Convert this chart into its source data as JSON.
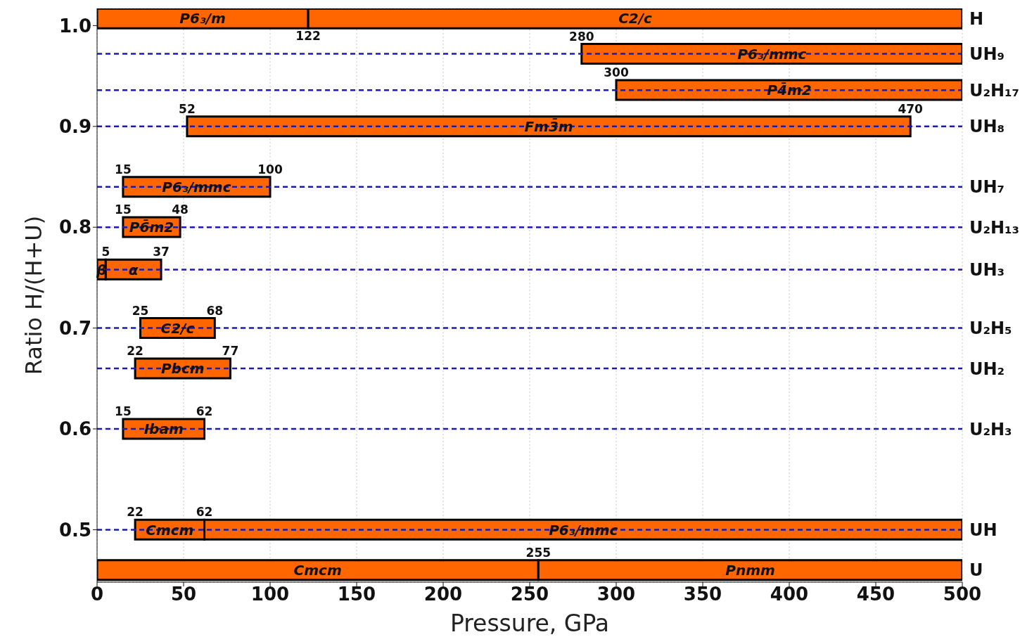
{
  "chart_data": {
    "type": "bar",
    "orientation": "horizontal",
    "xlabel": "Pressure, GPa",
    "ylabel": "Ratio H/(H+U)",
    "x": [
      1.007,
      0.972,
      0.936,
      0.9,
      0.84,
      0.8,
      0.758,
      0.7,
      0.66,
      0.6,
      0.5,
      0.46
    ],
    "series": [
      {
        "color": "#ff6600",
        "base": [
          0,
          280,
          300,
          52,
          15,
          15,
          0,
          25,
          22,
          15,
          22,
          0
        ],
        "values": [
          122,
          220,
          200,
          418,
          85,
          33,
          5,
          43,
          55,
          47,
          40,
          255
        ],
        "value_labels": [
          "P6₃/m",
          "P6₃/mmc",
          "P4̄m2",
          "Fm3̄m",
          "P6₃/mmc",
          "P6̄m2",
          "β",
          "C2/c",
          "Pbcm",
          "Ibam",
          "Cmcm",
          "Cmcm"
        ]
      },
      {
        "color": "#ff6600",
        "base": [
          122,
          null,
          null,
          null,
          null,
          null,
          5,
          null,
          null,
          null,
          62,
          255
        ],
        "values": [
          378,
          null,
          null,
          null,
          null,
          null,
          32,
          null,
          null,
          null,
          438,
          245
        ],
        "value_labels": [
          "C2/c",
          null,
          null,
          null,
          null,
          null,
          "α",
          null,
          null,
          null,
          "P6₃/mmc",
          "Pnmm"
        ]
      }
    ],
    "xlim": [
      0,
      500
    ],
    "xticks": [
      0,
      50,
      100,
      150,
      200,
      250,
      300,
      350,
      400,
      450,
      500
    ],
    "ylim": [
      0.448,
      1.017
    ],
    "yticks": [
      0.5,
      0.6,
      0.7,
      0.8,
      0.9,
      {
        "value": 1,
        "label": "1.0"
      }
    ],
    "ref_lines": [
      {
        "axis": "y",
        "value": 0.972,
        "color": "#1c1ca8",
        "line_style": "dashed"
      },
      {
        "axis": "y",
        "value": 0.936,
        "color": "#1c1ca8",
        "line_style": "dashed"
      },
      {
        "axis": "y",
        "value": 0.9,
        "color": "#1c1ca8",
        "line_style": "dashed"
      },
      {
        "axis": "y",
        "value": 0.84,
        "color": "#1c1ca8",
        "line_style": "dashed"
      },
      {
        "axis": "y",
        "value": 0.8,
        "color": "#1c1ca8",
        "line_style": "dashed"
      },
      {
        "axis": "y",
        "value": 0.758,
        "color": "#1c1ca8",
        "line_style": "dashed"
      },
      {
        "axis": "y",
        "value": 0.7,
        "color": "#1c1ca8",
        "line_style": "dashed"
      },
      {
        "axis": "y",
        "value": 0.66,
        "color": "#1c1ca8",
        "line_style": "dashed"
      },
      {
        "axis": "y",
        "value": 0.6,
        "color": "#1c1ca8",
        "line_style": "dashed"
      },
      {
        "axis": "y",
        "value": 0.5,
        "color": "#1c1ca8",
        "line_style": "dashed"
      }
    ],
    "annotations": [
      {
        "text": "122",
        "x": 122,
        "y": 1.007
      },
      {
        "text": "280",
        "x": 280,
        "y": 0.972
      },
      {
        "text": "300",
        "x": 300,
        "y": 0.936
      },
      {
        "text": "52",
        "x": 52,
        "y": 0.9
      },
      {
        "text": "470",
        "x": 470,
        "y": 0.9
      },
      {
        "text": "15",
        "x": 15,
        "y": 0.84
      },
      {
        "text": "100",
        "x": 100,
        "y": 0.84
      },
      {
        "text": "15",
        "x": 15,
        "y": 0.8
      },
      {
        "text": "48",
        "x": 48,
        "y": 0.8
      },
      {
        "text": "5",
        "x": 5,
        "y": 0.758
      },
      {
        "text": "37",
        "x": 37,
        "y": 0.758
      },
      {
        "text": "25",
        "x": 25,
        "y": 0.7
      },
      {
        "text": "68",
        "x": 68,
        "y": 0.7
      },
      {
        "text": "22",
        "x": 22,
        "y": 0.66
      },
      {
        "text": "77",
        "x": 77,
        "y": 0.66
      },
      {
        "text": "15",
        "x": 15,
        "y": 0.6
      },
      {
        "text": "62",
        "x": 62,
        "y": 0.6
      },
      {
        "text": "22",
        "x": 22,
        "y": 0.5
      },
      {
        "text": "62",
        "x": 62,
        "y": 0.5
      },
      {
        "text": "255",
        "x": 255,
        "y": 0.46
      },
      {
        "text": "H",
        "x": 500,
        "y": 1.007
      },
      {
        "text": "UH₉",
        "x": 500,
        "y": 0.972
      },
      {
        "text": "U₂H₁₇",
        "x": 500,
        "y": 0.936
      },
      {
        "text": "UH₈",
        "x": 500,
        "y": 0.9
      },
      {
        "text": "UH₇",
        "x": 500,
        "y": 0.84
      },
      {
        "text": "U₂H₁₃",
        "x": 500,
        "y": 0.8
      },
      {
        "text": "UH₃",
        "x": 500,
        "y": 0.758
      },
      {
        "text": "U₂H₅",
        "x": 500,
        "y": 0.7
      },
      {
        "text": "UH₂",
        "x": 500,
        "y": 0.66
      },
      {
        "text": "U₂H₃",
        "x": 500,
        "y": 0.6
      },
      {
        "text": "UH",
        "x": 500,
        "y": 0.5
      },
      {
        "text": "U",
        "x": 500,
        "y": 0.46
      }
    ],
    "grid": true
  }
}
